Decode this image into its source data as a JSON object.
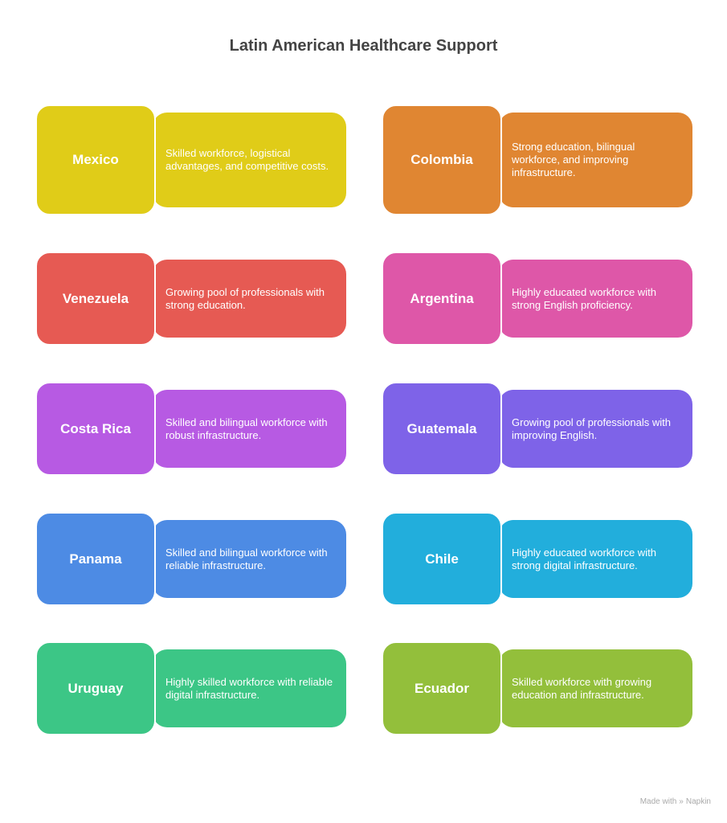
{
  "title": "Latin American Healthcare Support",
  "items": [
    {
      "country": "Mexico",
      "description": "Skilled workforce, logistical advantages, and competitive costs.",
      "color": "#E0CC18"
    },
    {
      "country": "Colombia",
      "description": "Strong education, bilingual workforce, and improving infrastructure.",
      "color": "#E08632"
    },
    {
      "country": "Venezuela",
      "description": "Growing pool of professionals with strong education.",
      "color": "#E65A53"
    },
    {
      "country": "Argentina",
      "description": "Highly educated workforce with strong English proficiency.",
      "color": "#DE57A8"
    },
    {
      "country": "Costa Rica",
      "description": "Skilled and bilingual workforce with robust infrastructure.",
      "color": "#B75AE3"
    },
    {
      "country": "Guatemala",
      "description": "Growing pool of professionals with improving English.",
      "color": "#7E63E8"
    },
    {
      "country": "Panama",
      "description": "Skilled and bilingual workforce with reliable infrastructure.",
      "color": "#4D8BE4"
    },
    {
      "country": "Chile",
      "description": "Highly educated workforce with strong digital infrastructure.",
      "color": "#22AEDC"
    },
    {
      "country": "Uruguay",
      "description": "Highly skilled workforce with reliable digital infrastructure.",
      "color": "#3CC686"
    },
    {
      "country": "Ecuador",
      "description": "Skilled workforce with growing education and infrastructure.",
      "color": "#93BF3B"
    }
  ],
  "footer": {
    "made_with": "Made with",
    "brand": "Napkin",
    "icon": "napkin-logo-icon"
  }
}
